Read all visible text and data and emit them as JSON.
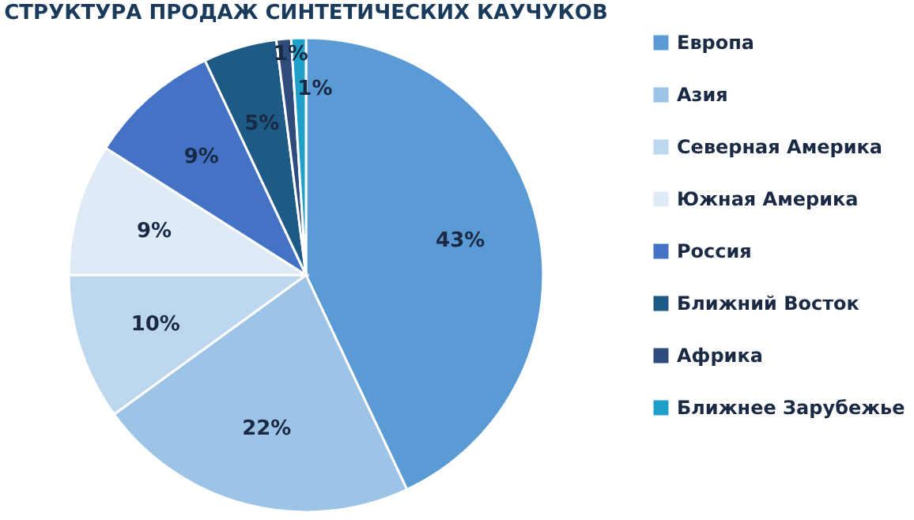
{
  "chart_data": {
    "type": "pie",
    "title": "СТРУКТУРА ПРОДАЖ СИНТЕТИЧЕСКИХ КАУЧУКОВ",
    "categories": [
      "Европа",
      "Азия",
      "Северная Америка",
      "Южная Америка",
      "Россия",
      "Ближний Восток",
      "Африка",
      "Ближнее Зарубежье"
    ],
    "values": [
      43,
      22,
      10,
      9,
      9,
      5,
      1,
      1
    ],
    "value_labels": [
      "43%",
      "22%",
      "10%",
      "9%",
      "9%",
      "5%",
      "1%",
      "1%"
    ],
    "colors": [
      "#5b9bd5",
      "#9dc3e6",
      "#bdd7ee",
      "#deebf7",
      "#4472c4",
      "#1d5b86",
      "#2f4b7c",
      "#1fa0c8"
    ],
    "legend": "right"
  }
}
